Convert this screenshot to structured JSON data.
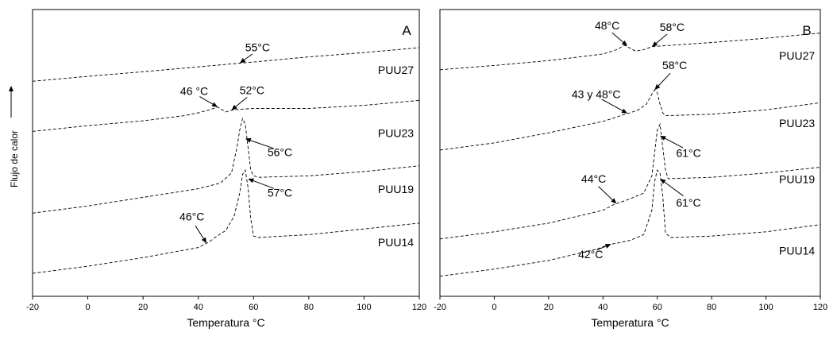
{
  "chart_data": [
    {
      "type": "line",
      "panel_label": "A",
      "xlabel": "Temperatura °C",
      "ylabel": "Flujo de calor",
      "xlim": [
        -20,
        120
      ],
      "xticks": [
        -20,
        0,
        20,
        40,
        60,
        80,
        100,
        120
      ],
      "ylim": [
        0,
        100
      ],
      "grid": false,
      "series": [
        {
          "name": "PUU27",
          "label_x": 118,
          "label_y": 77.5,
          "x": [
            -20,
            0,
            20,
            40,
            55,
            60,
            80,
            100,
            120
          ],
          "y": [
            75.0,
            76.7,
            78.3,
            80.0,
            81.3,
            81.7,
            83.5,
            85.0,
            86.7
          ]
        },
        {
          "name": "PUU23",
          "label_x": 118,
          "label_y": 55.5,
          "x": [
            -20,
            0,
            20,
            35,
            40,
            44,
            47,
            50,
            52,
            55,
            60,
            80,
            100,
            120
          ],
          "y": [
            57.5,
            59.5,
            61.2,
            63.0,
            64.0,
            65.0,
            66.0,
            64.3,
            64.9,
            65.2,
            65.5,
            65.5,
            66.6,
            68.3
          ]
        },
        {
          "name": "PUU19",
          "label_x": 118,
          "label_y": 36.0,
          "x": [
            -20,
            0,
            20,
            40,
            48,
            52,
            54,
            55,
            56,
            57,
            58,
            59,
            60,
            62,
            80,
            100,
            120
          ],
          "y": [
            29.0,
            31.5,
            34.5,
            37.5,
            39.5,
            43.0,
            52.0,
            58.0,
            62.0,
            60.0,
            52.0,
            44.0,
            42.0,
            41.5,
            42.0,
            43.5,
            45.5
          ]
        },
        {
          "name": "PUU14",
          "label_x": 118,
          "label_y": 17.5,
          "x": [
            -20,
            0,
            20,
            40,
            44,
            46,
            50,
            53,
            55,
            56,
            57,
            58,
            59,
            60,
            62,
            80,
            100,
            120
          ],
          "y": [
            8.0,
            10.5,
            13.5,
            17.0,
            19.0,
            20.5,
            23.0,
            28.0,
            36.0,
            42.5,
            44.0,
            38.0,
            27.0,
            21.0,
            20.5,
            21.5,
            23.5,
            25.5
          ]
        }
      ],
      "annotations": [
        {
          "text": "55°C",
          "x": 55,
          "y": 81.3,
          "text_x": 61,
          "text_y": 85.5
        },
        {
          "text": "46 °C",
          "x": 47,
          "y": 66.0,
          "text_x": 39,
          "text_y": 70.5
        },
        {
          "text": "52°C",
          "x": 52,
          "y": 64.9,
          "text_x": 59,
          "text_y": 70.5
        },
        {
          "text": "56°C",
          "x": 57,
          "y": 55.0,
          "text_x": 69,
          "text_y": 51.0
        },
        {
          "text": "46°C",
          "x": 43,
          "y": 18.5,
          "text_x": 38,
          "text_y": 26.0
        },
        {
          "text": "57°C",
          "x": 58,
          "y": 41.0,
          "text_x": 69,
          "text_y": 37.0
        }
      ]
    },
    {
      "type": "line",
      "panel_label": "B",
      "xlabel": "Temperatura °C",
      "ylabel": "",
      "xlim": [
        -20,
        120
      ],
      "xticks": [
        -20,
        0,
        20,
        40,
        60,
        80,
        100,
        120
      ],
      "ylim": [
        0,
        100
      ],
      "grid": false,
      "series": [
        {
          "name": "PUU27",
          "label_x": 118,
          "label_y": 82.5,
          "x": [
            -20,
            0,
            20,
            40,
            45,
            48,
            50,
            52,
            55,
            58,
            60,
            80,
            100,
            120
          ],
          "y": [
            79.0,
            80.5,
            82.2,
            84.5,
            86.0,
            87.5,
            86.5,
            85.5,
            86.0,
            87.0,
            87.2,
            88.5,
            90.0,
            91.8
          ]
        },
        {
          "name": "PUU23",
          "label_x": 118,
          "label_y": 59.0,
          "x": [
            -20,
            0,
            20,
            40,
            45,
            48,
            50,
            53,
            56,
            58,
            59,
            60,
            61,
            62,
            63,
            80,
            100,
            120
          ],
          "y": [
            51.0,
            53.5,
            57.0,
            61.0,
            62.5,
            63.5,
            64.0,
            65.0,
            67.0,
            70.5,
            72.0,
            71.0,
            67.0,
            64.0,
            63.0,
            63.5,
            65.0,
            67.5
          ]
        },
        {
          "name": "PUU19",
          "label_x": 118,
          "label_y": 39.5,
          "x": [
            -20,
            0,
            20,
            40,
            44,
            50,
            55,
            58,
            59,
            60,
            61,
            62,
            63,
            64,
            80,
            100,
            120
          ],
          "y": [
            20.0,
            22.5,
            25.5,
            30.0,
            32.0,
            34.0,
            36.0,
            42.0,
            50.0,
            58.0,
            60.0,
            52.0,
            44.0,
            41.0,
            41.5,
            43.0,
            45.0
          ]
        },
        {
          "name": "PUU14",
          "label_x": 118,
          "label_y": 14.5,
          "x": [
            -20,
            0,
            20,
            38,
            42,
            45,
            50,
            55,
            58,
            59,
            60,
            61,
            62,
            63,
            65,
            80,
            100,
            120
          ],
          "y": [
            7.0,
            9.5,
            12.5,
            16.5,
            18.0,
            18.5,
            19.5,
            21.5,
            30.0,
            40.0,
            44.0,
            43.0,
            35.0,
            22.0,
            20.5,
            21.0,
            22.5,
            25.0
          ]
        }
      ],
      "annotations": [
        {
          "text": "48°C",
          "x": 49,
          "y": 87.3,
          "text_x": 42,
          "text_y": 93.0
        },
        {
          "text": "58°C",
          "x": 58,
          "y": 87.0,
          "text_x": 65,
          "text_y": 92.5
        },
        {
          "text": "43 y 48°C",
          "x": 49,
          "y": 63.8,
          "text_x": 38,
          "text_y": 69.5
        },
        {
          "text": "58°C",
          "x": 59,
          "y": 72.0,
          "text_x": 66,
          "text_y": 79.0
        },
        {
          "text": "61°C",
          "x": 61,
          "y": 56.0,
          "text_x": 71,
          "text_y": 51.0
        },
        {
          "text": "44°C",
          "x": 45,
          "y": 32.3,
          "text_x": 37,
          "text_y": 39.5
        },
        {
          "text": "61°C",
          "x": 61,
          "y": 41.0,
          "text_x": 71,
          "text_y": 34.0
        },
        {
          "text": "42°C",
          "x": 43,
          "y": 18.2,
          "text_x": 36,
          "text_y": 15.5
        }
      ]
    }
  ]
}
